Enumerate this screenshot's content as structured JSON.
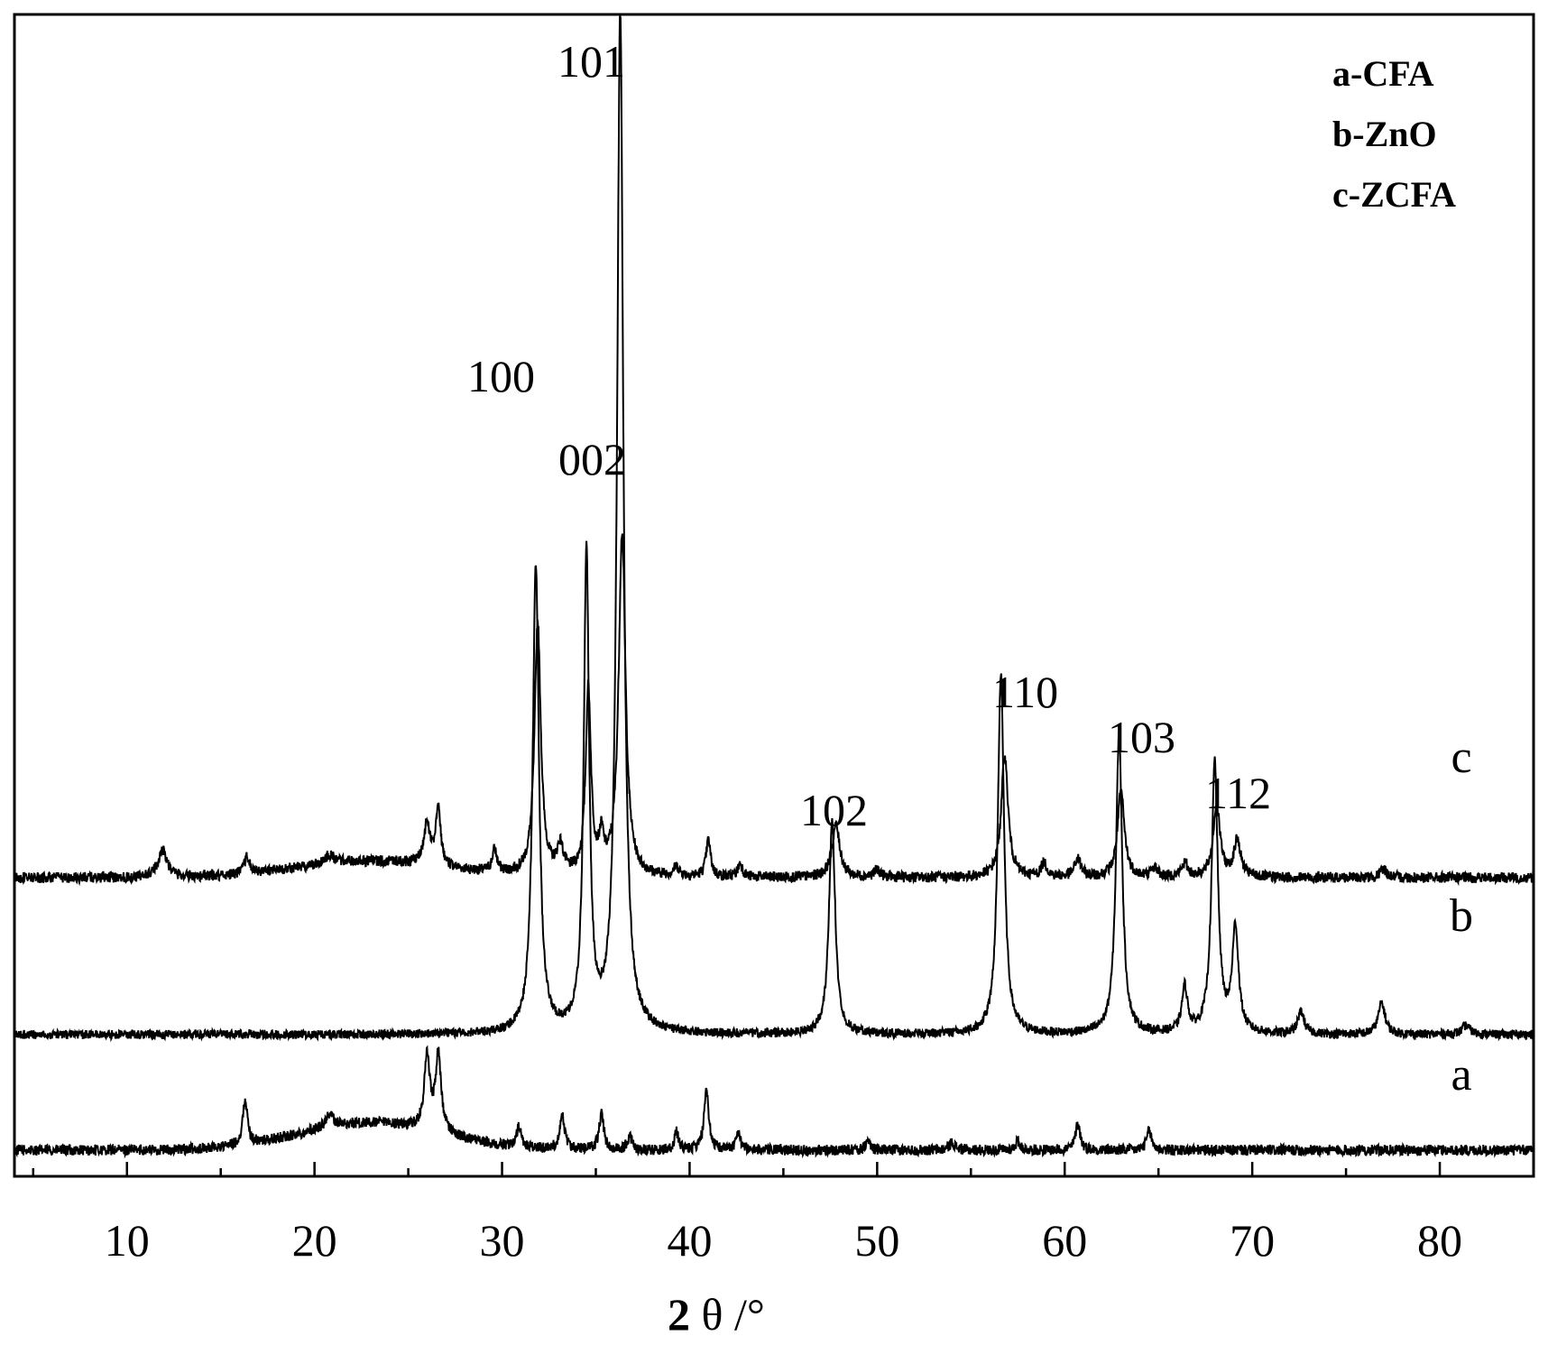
{
  "chart_data": {
    "type": "line",
    "title": "",
    "xlabel": {
      "bold": "2",
      "rest": " θ /°"
    },
    "ylabel": "",
    "xlim": [
      4,
      85
    ],
    "xticks": [
      10,
      20,
      30,
      40,
      50,
      60,
      70,
      80
    ],
    "legend": {
      "placement": "top-right",
      "entries": [
        "a-CFA",
        "b-ZnO",
        "c-ZCFA"
      ]
    },
    "series": [
      {
        "name": "a",
        "legend_label": "a-CFA",
        "baseline": 1275,
        "noise": 6,
        "broad_humps": [
          {
            "x": 23.0,
            "h": 30,
            "w": 3.8
          }
        ],
        "peaks": [
          {
            "x": 16.3,
            "h": 50,
            "w": 0.15
          },
          {
            "x": 20.8,
            "h": 15,
            "w": 0.25
          },
          {
            "x": 26.0,
            "h": 80,
            "w": 0.18
          },
          {
            "x": 26.6,
            "h": 85,
            "w": 0.18
          },
          {
            "x": 30.9,
            "h": 22,
            "w": 0.15
          },
          {
            "x": 33.2,
            "h": 40,
            "w": 0.15
          },
          {
            "x": 35.3,
            "h": 40,
            "w": 0.15
          },
          {
            "x": 36.8,
            "h": 15,
            "w": 0.15
          },
          {
            "x": 39.3,
            "h": 20,
            "w": 0.12
          },
          {
            "x": 40.9,
            "h": 65,
            "w": 0.15
          },
          {
            "x": 42.6,
            "h": 20,
            "w": 0.15
          },
          {
            "x": 49.5,
            "h": 10,
            "w": 0.15
          },
          {
            "x": 54.0,
            "h": 8,
            "w": 0.2
          },
          {
            "x": 57.5,
            "h": 10,
            "w": 0.15
          },
          {
            "x": 60.7,
            "h": 30,
            "w": 0.15
          },
          {
            "x": 64.5,
            "h": 22,
            "w": 0.15
          }
        ]
      },
      {
        "name": "b",
        "legend_label": "b-ZnO",
        "baseline": 1147,
        "noise": 5,
        "peaks": [
          {
            "x": 31.8,
            "h": 520,
            "w": 0.2
          },
          {
            "x": 34.5,
            "h": 530,
            "w": 0.17
          },
          {
            "x": 36.3,
            "h": 1135,
            "w": 0.2
          },
          {
            "x": 47.6,
            "h": 235,
            "w": 0.2
          },
          {
            "x": 56.6,
            "h": 400,
            "w": 0.2
          },
          {
            "x": 62.9,
            "h": 335,
            "w": 0.2
          },
          {
            "x": 66.4,
            "h": 50,
            "w": 0.18
          },
          {
            "x": 68.0,
            "h": 300,
            "w": 0.2
          },
          {
            "x": 69.1,
            "h": 115,
            "w": 0.2
          },
          {
            "x": 72.6,
            "h": 25,
            "w": 0.2
          },
          {
            "x": 76.9,
            "h": 35,
            "w": 0.22
          },
          {
            "x": 81.4,
            "h": 10,
            "w": 0.25
          }
        ]
      },
      {
        "name": "c",
        "legend_label": "c-ZCFA",
        "baseline": 973,
        "noise": 6,
        "broad_humps": [
          {
            "x": 23.0,
            "h": 18,
            "w": 4.0
          }
        ],
        "peaks": [
          {
            "x": 11.9,
            "h": 30,
            "w": 0.3
          },
          {
            "x": 16.4,
            "h": 20,
            "w": 0.15
          },
          {
            "x": 20.8,
            "h": 10,
            "w": 0.3
          },
          {
            "x": 26.0,
            "h": 45,
            "w": 0.2
          },
          {
            "x": 26.6,
            "h": 65,
            "w": 0.15
          },
          {
            "x": 29.6,
            "h": 25,
            "w": 0.15
          },
          {
            "x": 31.9,
            "h": 280,
            "w": 0.2
          },
          {
            "x": 33.1,
            "h": 30,
            "w": 0.2
          },
          {
            "x": 34.6,
            "h": 205,
            "w": 0.17
          },
          {
            "x": 35.3,
            "h": 35,
            "w": 0.15
          },
          {
            "x": 36.4,
            "h": 380,
            "w": 0.22
          },
          {
            "x": 39.3,
            "h": 10,
            "w": 0.2
          },
          {
            "x": 41.0,
            "h": 40,
            "w": 0.15
          },
          {
            "x": 42.7,
            "h": 15,
            "w": 0.15
          },
          {
            "x": 47.8,
            "h": 58,
            "w": 0.25
          },
          {
            "x": 50.0,
            "h": 8,
            "w": 0.2
          },
          {
            "x": 56.8,
            "h": 135,
            "w": 0.22
          },
          {
            "x": 58.9,
            "h": 15,
            "w": 0.2
          },
          {
            "x": 60.7,
            "h": 20,
            "w": 0.2
          },
          {
            "x": 63.0,
            "h": 95,
            "w": 0.22
          },
          {
            "x": 64.8,
            "h": 10,
            "w": 0.2
          },
          {
            "x": 66.4,
            "h": 15,
            "w": 0.2
          },
          {
            "x": 68.1,
            "h": 80,
            "w": 0.22
          },
          {
            "x": 69.2,
            "h": 40,
            "w": 0.22
          },
          {
            "x": 77.0,
            "h": 10,
            "w": 0.2
          }
        ]
      }
    ],
    "trace_labels": [
      "c",
      "b",
      "a"
    ],
    "peak_labels": [
      "101",
      "100",
      "002",
      "110",
      "103",
      "102",
      "112"
    ]
  }
}
